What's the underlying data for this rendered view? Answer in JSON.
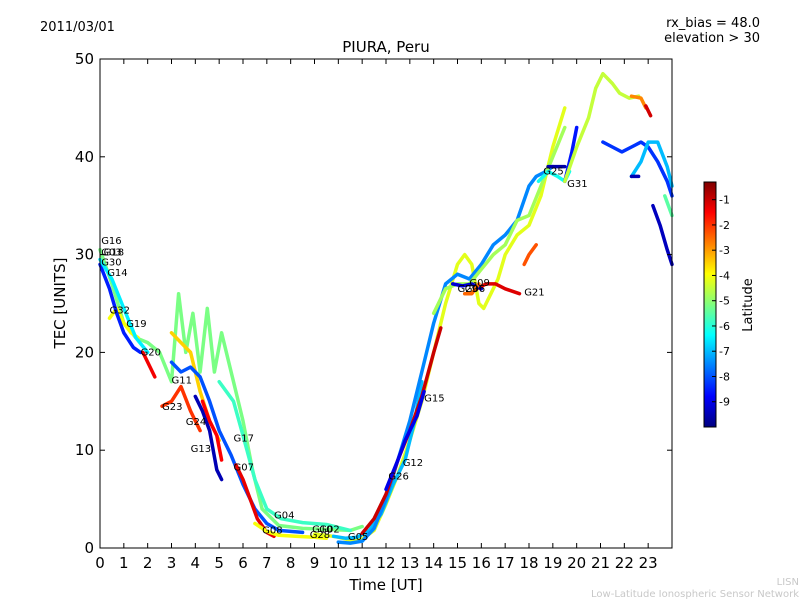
{
  "header": {
    "date": "2011/03/01",
    "rx_bias": "rx_bias = 48.0",
    "elevation": "elevation > 30"
  },
  "footer": {
    "org_short": "LISN",
    "org_long": "Low-Latitude Ionospheric Sensor Network"
  },
  "colors": {
    "jet": [
      "#00007f",
      "#0000ff",
      "#007fff",
      "#00ffff",
      "#7fff7f",
      "#ffff00",
      "#ff7f00",
      "#ff0000",
      "#7f0000"
    ]
  },
  "chart_data": {
    "type": "scatter",
    "title": "PIURA, Peru",
    "xlabel": "Time [UT]",
    "ylabel": "TEC [UNITS]",
    "xlim": [
      0,
      24
    ],
    "ylim": [
      0,
      50
    ],
    "xticks": [
      0,
      1,
      2,
      3,
      4,
      5,
      6,
      7,
      8,
      9,
      10,
      11,
      12,
      13,
      14,
      15,
      16,
      17,
      18,
      19,
      20,
      21,
      22,
      23
    ],
    "yticks": [
      0,
      10,
      20,
      30,
      40,
      50
    ],
    "colorbar": {
      "label": "Latitude",
      "range": [
        -10,
        -0.3
      ],
      "ticks": [
        -1,
        -2,
        -3,
        -4,
        -5,
        -6,
        -7,
        -8,
        -9
      ]
    },
    "series": [
      {
        "lat": -5.2,
        "points": [
          [
            0,
            30.5
          ],
          [
            0.5,
            27
          ],
          [
            1,
            23
          ],
          [
            1.5,
            21.5
          ],
          [
            2,
            21
          ],
          [
            2.5,
            20
          ],
          [
            3,
            17
          ],
          [
            3.3,
            26
          ],
          [
            3.6,
            20
          ],
          [
            3.9,
            24
          ],
          [
            4.2,
            18
          ],
          [
            4.5,
            24.5
          ],
          [
            4.8,
            18
          ],
          [
            5.1,
            22
          ],
          [
            5.6,
            17
          ],
          [
            6,
            13
          ],
          [
            6.4,
            8
          ],
          [
            6.8,
            4
          ],
          [
            7.5,
            2.3
          ],
          [
            8.5,
            2
          ],
          [
            9.5,
            1.9
          ],
          [
            10.5,
            1.8
          ],
          [
            11,
            2.2
          ]
        ]
      },
      {
        "lat": -5.8,
        "points": [
          [
            5,
            17
          ],
          [
            5.6,
            15
          ],
          [
            6,
            11.5
          ],
          [
            6.5,
            7
          ],
          [
            7,
            4
          ],
          [
            7.6,
            3
          ],
          [
            8.5,
            2.6
          ],
          [
            9.5,
            2.4
          ],
          [
            10.5,
            1.8
          ]
        ]
      },
      {
        "lat": -4.0,
        "points": [
          [
            0.4,
            23.5
          ],
          [
            0.7,
            24.5
          ],
          [
            1,
            23
          ],
          [
            1.3,
            22
          ],
          [
            1.6,
            21.5
          ]
        ]
      },
      {
        "lat": -8.5,
        "points": [
          [
            0,
            29
          ],
          [
            0.4,
            26.5
          ],
          [
            0.7,
            24
          ],
          [
            1,
            22
          ],
          [
            1.4,
            20.5
          ],
          [
            1.7,
            20
          ]
        ]
      },
      {
        "lat": -6.5,
        "points": [
          [
            0,
            29.5
          ],
          [
            0.5,
            27.5
          ],
          [
            1,
            24.5
          ],
          [
            1.5,
            21.5
          ],
          [
            2,
            20
          ]
        ]
      },
      {
        "lat": -3.5,
        "points": [
          [
            3,
            22
          ],
          [
            3.4,
            21
          ],
          [
            3.8,
            20
          ],
          [
            4.2,
            16
          ],
          [
            4.6,
            13
          ],
          [
            5,
            11
          ]
        ]
      },
      {
        "lat": -8.0,
        "points": [
          [
            3,
            19
          ],
          [
            3.4,
            18
          ],
          [
            3.8,
            18.5
          ],
          [
            4.2,
            17.5
          ],
          [
            4.6,
            15
          ],
          [
            5,
            12
          ],
          [
            5.5,
            9.5
          ],
          [
            6,
            6.5
          ],
          [
            6.5,
            4
          ],
          [
            7,
            2.5
          ],
          [
            7.5,
            1.8
          ],
          [
            8.5,
            1.6
          ]
        ]
      },
      {
        "lat": -2.0,
        "points": [
          [
            2.6,
            14.5
          ],
          [
            3,
            15
          ],
          [
            3.4,
            16.5
          ],
          [
            3.8,
            14
          ],
          [
            4.2,
            12
          ]
        ]
      },
      {
        "lat": -9.5,
        "points": [
          [
            4,
            15.5
          ],
          [
            4.3,
            14
          ],
          [
            4.6,
            12
          ],
          [
            4.9,
            8
          ],
          [
            5.1,
            7
          ]
        ]
      },
      {
        "lat": -1.5,
        "points": [
          [
            4.3,
            15
          ],
          [
            4.6,
            13
          ],
          [
            4.9,
            11.5
          ],
          [
            5.1,
            9
          ]
        ]
      },
      {
        "lat": -1.3,
        "points": [
          [
            5.7,
            8.5
          ],
          [
            6,
            7
          ],
          [
            6.3,
            5
          ],
          [
            6.6,
            3
          ],
          [
            7,
            1.6
          ],
          [
            7.3,
            1.2
          ]
        ]
      },
      {
        "lat": -4.0,
        "points": [
          [
            6.5,
            2.5
          ],
          [
            7,
            1.7
          ],
          [
            7.5,
            1.3
          ],
          [
            8.2,
            1.2
          ],
          [
            9,
            1.1
          ],
          [
            9.5,
            1.0
          ]
        ]
      },
      {
        "lat": -4.2,
        "points": [
          [
            9,
            1.4
          ],
          [
            9.5,
            1.3
          ],
          [
            10,
            1.1
          ],
          [
            10.5,
            0.8
          ],
          [
            11,
            0.9
          ],
          [
            11.5,
            1.8
          ],
          [
            12,
            4.5
          ],
          [
            12.5,
            7.5
          ],
          [
            13,
            11
          ],
          [
            13.5,
            15
          ],
          [
            14,
            20
          ],
          [
            14.5,
            25
          ],
          [
            15,
            29
          ],
          [
            15.3,
            30
          ],
          [
            15.6,
            29
          ],
          [
            15.9,
            25
          ],
          [
            16.1,
            24.5
          ],
          [
            16.4,
            26
          ],
          [
            16.7,
            27.5
          ],
          [
            17,
            30
          ],
          [
            17.5,
            32
          ],
          [
            18,
            33
          ],
          [
            18.5,
            36
          ],
          [
            19,
            41
          ],
          [
            19.5,
            45
          ]
        ]
      },
      {
        "lat": -7.0,
        "points": [
          [
            9.8,
            1.2
          ],
          [
            10.3,
            1.0
          ],
          [
            10.8,
            1.1
          ],
          [
            11.3,
            1.8
          ],
          [
            11.8,
            3.5
          ],
          [
            12.3,
            6.5
          ],
          [
            12.8,
            9
          ],
          [
            13.2,
            13
          ],
          [
            13.5,
            17
          ]
        ]
      },
      {
        "lat": -7.5,
        "points": [
          [
            10,
            0.6
          ],
          [
            10.5,
            0.5
          ],
          [
            11,
            0.7
          ],
          [
            11.5,
            2
          ],
          [
            12,
            5
          ],
          [
            12.5,
            9
          ],
          [
            13,
            13
          ],
          [
            13.5,
            18
          ],
          [
            14,
            23
          ],
          [
            14.5,
            27
          ],
          [
            15,
            28
          ],
          [
            15.5,
            27.5
          ],
          [
            16,
            29
          ],
          [
            16.5,
            31
          ],
          [
            17,
            32
          ],
          [
            17.5,
            33.5
          ],
          [
            18,
            37
          ],
          [
            18.3,
            38
          ],
          [
            18.7,
            38.5
          ],
          [
            19,
            39
          ]
        ]
      },
      {
        "lat": -1.0,
        "points": [
          [
            11,
            1.5
          ],
          [
            11.5,
            3
          ],
          [
            12,
            5.5
          ],
          [
            12.5,
            9
          ],
          [
            13,
            12
          ],
          [
            13.5,
            15.5
          ],
          [
            14,
            20
          ],
          [
            14.3,
            22.5
          ]
        ]
      },
      {
        "lat": -9.0,
        "points": [
          [
            12,
            6
          ],
          [
            12.5,
            9
          ],
          [
            12.8,
            11
          ],
          [
            13.3,
            13.5
          ],
          [
            13.6,
            16
          ]
        ]
      },
      {
        "lat": -4.8,
        "points": [
          [
            14,
            24
          ],
          [
            14.5,
            26.5
          ],
          [
            15,
            27
          ],
          [
            15.5,
            27
          ],
          [
            16,
            28.5
          ],
          [
            16.5,
            30
          ],
          [
            17,
            31
          ],
          [
            17.5,
            33.5
          ],
          [
            18,
            34
          ],
          [
            18.5,
            37
          ],
          [
            19,
            40
          ],
          [
            19.5,
            43
          ]
        ]
      },
      {
        "lat": -1.2,
        "points": [
          [
            15.8,
            26.5
          ],
          [
            16.2,
            27
          ],
          [
            16.6,
            27
          ],
          [
            17,
            26.5
          ],
          [
            17.6,
            26
          ]
        ]
      },
      {
        "lat": -9.2,
        "points": [
          [
            14.8,
            27
          ],
          [
            15.2,
            26.8
          ],
          [
            15.6,
            27
          ],
          [
            16,
            26.5
          ]
        ]
      },
      {
        "lat": -2.5,
        "points": [
          [
            15.3,
            26
          ],
          [
            15.6,
            26
          ],
          [
            15.9,
            27
          ]
        ]
      },
      {
        "lat": -2.3,
        "points": [
          [
            17.8,
            29
          ],
          [
            18,
            30
          ],
          [
            18.3,
            31
          ]
        ]
      },
      {
        "lat": -6.2,
        "points": [
          [
            18.4,
            37.5
          ],
          [
            18.8,
            38.5
          ],
          [
            19.2,
            38
          ],
          [
            19.5,
            37.5
          ],
          [
            19.7,
            38.5
          ]
        ]
      },
      {
        "lat": -8.6,
        "points": [
          [
            19.5,
            37.5
          ],
          [
            19.8,
            40.5
          ],
          [
            20,
            43
          ]
        ]
      },
      {
        "lat": -9.6,
        "points": [
          [
            18.8,
            39
          ],
          [
            19.2,
            39
          ],
          [
            19.5,
            39
          ]
        ]
      },
      {
        "lat": -4.5,
        "points": [
          [
            19.5,
            37.5
          ],
          [
            20,
            41
          ],
          [
            20.5,
            44
          ],
          [
            20.8,
            47
          ],
          [
            21.1,
            48.5
          ],
          [
            21.5,
            47.5
          ],
          [
            21.8,
            46.5
          ],
          [
            22.2,
            46
          ],
          [
            22.6,
            46.2
          ]
        ]
      },
      {
        "lat": -2.8,
        "points": [
          [
            22.3,
            46.2
          ],
          [
            22.7,
            46
          ],
          [
            22.9,
            45
          ]
        ]
      },
      {
        "lat": -1.1,
        "points": [
          [
            22.9,
            45.2
          ],
          [
            23.1,
            44.2
          ]
        ]
      },
      {
        "lat": -8.3,
        "points": [
          [
            21.1,
            41.5
          ],
          [
            21.5,
            41
          ],
          [
            21.9,
            40.5
          ],
          [
            22.3,
            41
          ],
          [
            22.7,
            41.5
          ],
          [
            23,
            41
          ],
          [
            23.4,
            39.5
          ],
          [
            23.8,
            37.5
          ],
          [
            24,
            36
          ]
        ]
      },
      {
        "lat": -7.0,
        "points": [
          [
            22.3,
            38
          ],
          [
            22.7,
            39.5
          ],
          [
            23,
            41.5
          ],
          [
            23.4,
            41.5
          ],
          [
            23.8,
            39
          ],
          [
            24,
            37
          ]
        ]
      },
      {
        "lat": -9.5,
        "points": [
          [
            22.3,
            38
          ],
          [
            22.6,
            38
          ]
        ]
      },
      {
        "lat": -9.4,
        "points": [
          [
            23.2,
            35
          ],
          [
            23.5,
            33
          ],
          [
            23.8,
            30.5
          ],
          [
            24,
            29
          ]
        ]
      },
      {
        "lat": -5.5,
        "points": [
          [
            23.7,
            36
          ],
          [
            24,
            34
          ]
        ]
      },
      {
        "lat": -1.4,
        "points": [
          [
            1.8,
            20
          ],
          [
            2.1,
            18.5
          ],
          [
            2.3,
            17.5
          ]
        ]
      }
    ],
    "labels": [
      {
        "text": "G16",
        "x": 0.05,
        "y": 31.1
      },
      {
        "text": "G03",
        "x": 0.05,
        "y": 29.9
      },
      {
        "text": "G18",
        "x": 0.15,
        "y": 29.9
      },
      {
        "text": "G30",
        "x": 0.05,
        "y": 28.9
      },
      {
        "text": "G14",
        "x": 0.3,
        "y": 27.8
      },
      {
        "text": "G32",
        "x": 0.4,
        "y": 24.0
      },
      {
        "text": "G19",
        "x": 1.1,
        "y": 22.6
      },
      {
        "text": "G20",
        "x": 1.7,
        "y": 19.7
      },
      {
        "text": "G11",
        "x": 3.0,
        "y": 16.8
      },
      {
        "text": "G23",
        "x": 2.6,
        "y": 14.1
      },
      {
        "text": "G24",
        "x": 3.6,
        "y": 12.6
      },
      {
        "text": "G13",
        "x": 3.8,
        "y": 9.8
      },
      {
        "text": "G17",
        "x": 5.6,
        "y": 10.9
      },
      {
        "text": "G07",
        "x": 5.6,
        "y": 7.9
      },
      {
        "text": "G04",
        "x": 7.3,
        "y": 3.0
      },
      {
        "text": "G08",
        "x": 6.8,
        "y": 1.5
      },
      {
        "text": "G10",
        "x": 8.9,
        "y": 1.6
      },
      {
        "text": "G02",
        "x": 9.2,
        "y": 1.6
      },
      {
        "text": "G28",
        "x": 8.8,
        "y": 1.0
      },
      {
        "text": "G05",
        "x": 10.4,
        "y": 0.8
      },
      {
        "text": "G15",
        "x": 13.6,
        "y": 15.0
      },
      {
        "text": "G12",
        "x": 12.7,
        "y": 8.4
      },
      {
        "text": "G26",
        "x": 12.1,
        "y": 7.0
      },
      {
        "text": "G09",
        "x": 15.5,
        "y": 26.8
      },
      {
        "text": "G29",
        "x": 15.0,
        "y": 26.2
      },
      {
        "text": "G06",
        "x": 15.3,
        "y": 26.2
      },
      {
        "text": "G21",
        "x": 17.8,
        "y": 25.8
      },
      {
        "text": "G25",
        "x": 18.6,
        "y": 38.2
      },
      {
        "text": "G31",
        "x": 19.6,
        "y": 36.9
      }
    ]
  }
}
